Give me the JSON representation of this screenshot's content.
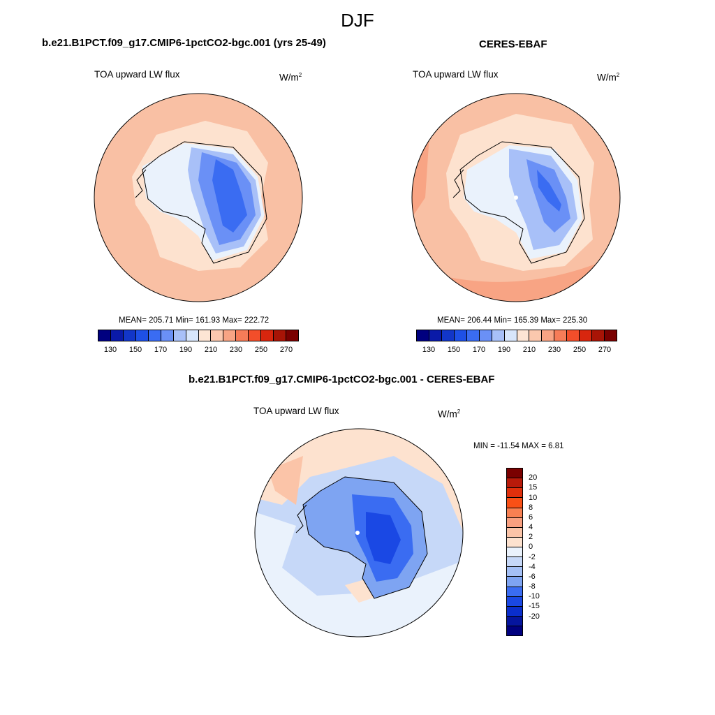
{
  "page": {
    "title": "DJF"
  },
  "panels": {
    "model": {
      "title": "b.e21.B1PCT.f09_g17.CMIP6-1pctCO2-bgc.001 (yrs 25-49)",
      "variable": "TOA upward LW flux",
      "units": "W/m",
      "units_exp": "2",
      "stats": "MEAN= 205.71  Min= 161.93  Max= 222.72"
    },
    "obs": {
      "title": "CERES-EBAF",
      "variable": "TOA upward LW flux",
      "units": "W/m",
      "units_exp": "2",
      "stats": "MEAN= 206.44  Min= 165.39  Max= 225.30"
    },
    "diff": {
      "title": "b.e21.B1PCT.f09_g17.CMIP6-1pctCO2-bgc.001 - CERES-EBAF",
      "variable": "TOA upward LW flux",
      "units": "W/m",
      "units_exp": "2",
      "stats": "MIN = -11.54 MAX =   6.81"
    }
  },
  "colorbars": {
    "abs": {
      "colors": [
        "#00007f",
        "#0a1aa8",
        "#1236c8",
        "#1e50e6",
        "#3a6cf2",
        "#6a90f6",
        "#a8c0f8",
        "#d8e6fb",
        "#fde5d4",
        "#fbc8ae",
        "#f8a484",
        "#f67c58",
        "#f24e2a",
        "#d8260e",
        "#a81406",
        "#7a0000"
      ],
      "labels": [
        "130",
        "150",
        "170",
        "190",
        "210",
        "230",
        "250",
        "270"
      ]
    },
    "diff": {
      "colors": [
        "#7a0000",
        "#b81a0a",
        "#e0300c",
        "#fa5016",
        "#f88052",
        "#f9a080",
        "#fbc4a8",
        "#fde2cf",
        "#eaf2fc",
        "#c6d8f8",
        "#a4c0f6",
        "#7ea4f2",
        "#3a6cf2",
        "#1a48e4",
        "#0a2ecc",
        "#05159e",
        "#00007f"
      ],
      "labels": [
        "20",
        "15",
        "10",
        "8",
        "6",
        "4",
        "2",
        "0",
        "-2",
        "-4",
        "-6",
        "-8",
        "-10",
        "-15",
        "-20"
      ]
    }
  }
}
